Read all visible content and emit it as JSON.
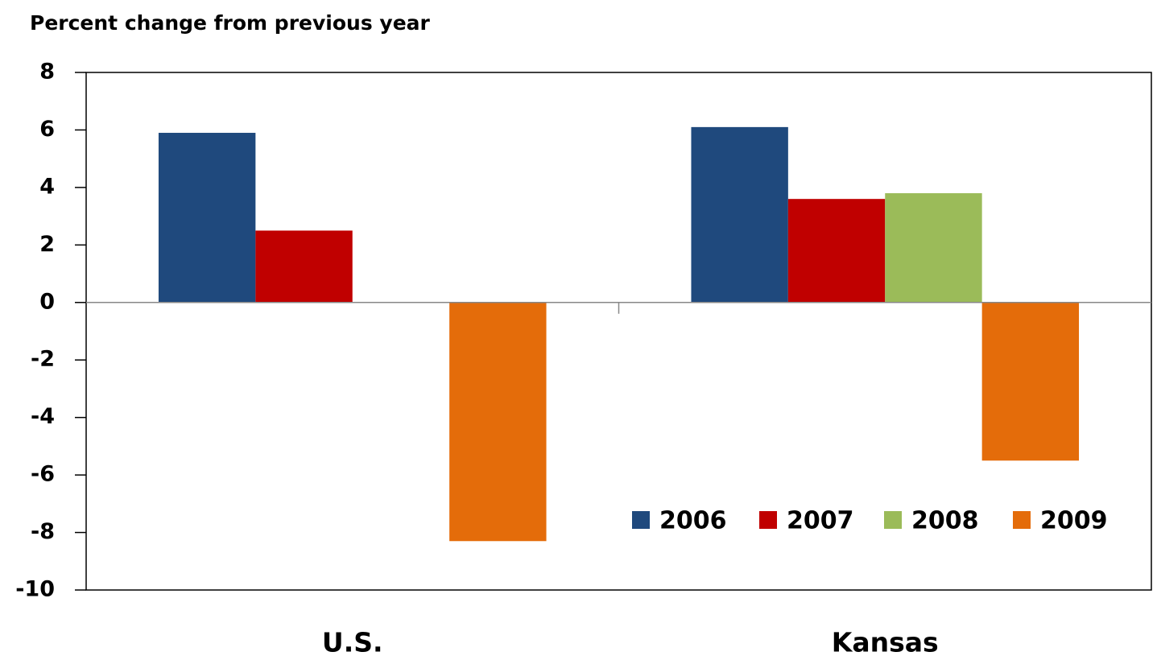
{
  "chart_data": {
    "type": "bar",
    "title": "Percent change from previous year",
    "categories": [
      "U.S.",
      "Kansas"
    ],
    "series": [
      {
        "name": "2006",
        "color": "#1f497d",
        "values": [
          5.9,
          6.1
        ]
      },
      {
        "name": "2007",
        "color": "#c00000",
        "values": [
          2.5,
          3.6
        ]
      },
      {
        "name": "2008",
        "color": "#9bbb59",
        "values": [
          null,
          3.8
        ]
      },
      {
        "name": "2009",
        "color": "#e46c0a",
        "values": [
          -8.3,
          -5.5
        ]
      }
    ],
    "ylim": [
      -10,
      8
    ],
    "yticks": [
      -10,
      -8,
      -6,
      -4,
      -2,
      0,
      2,
      4,
      6,
      8
    ],
    "grid": false,
    "legend": "lower right"
  }
}
